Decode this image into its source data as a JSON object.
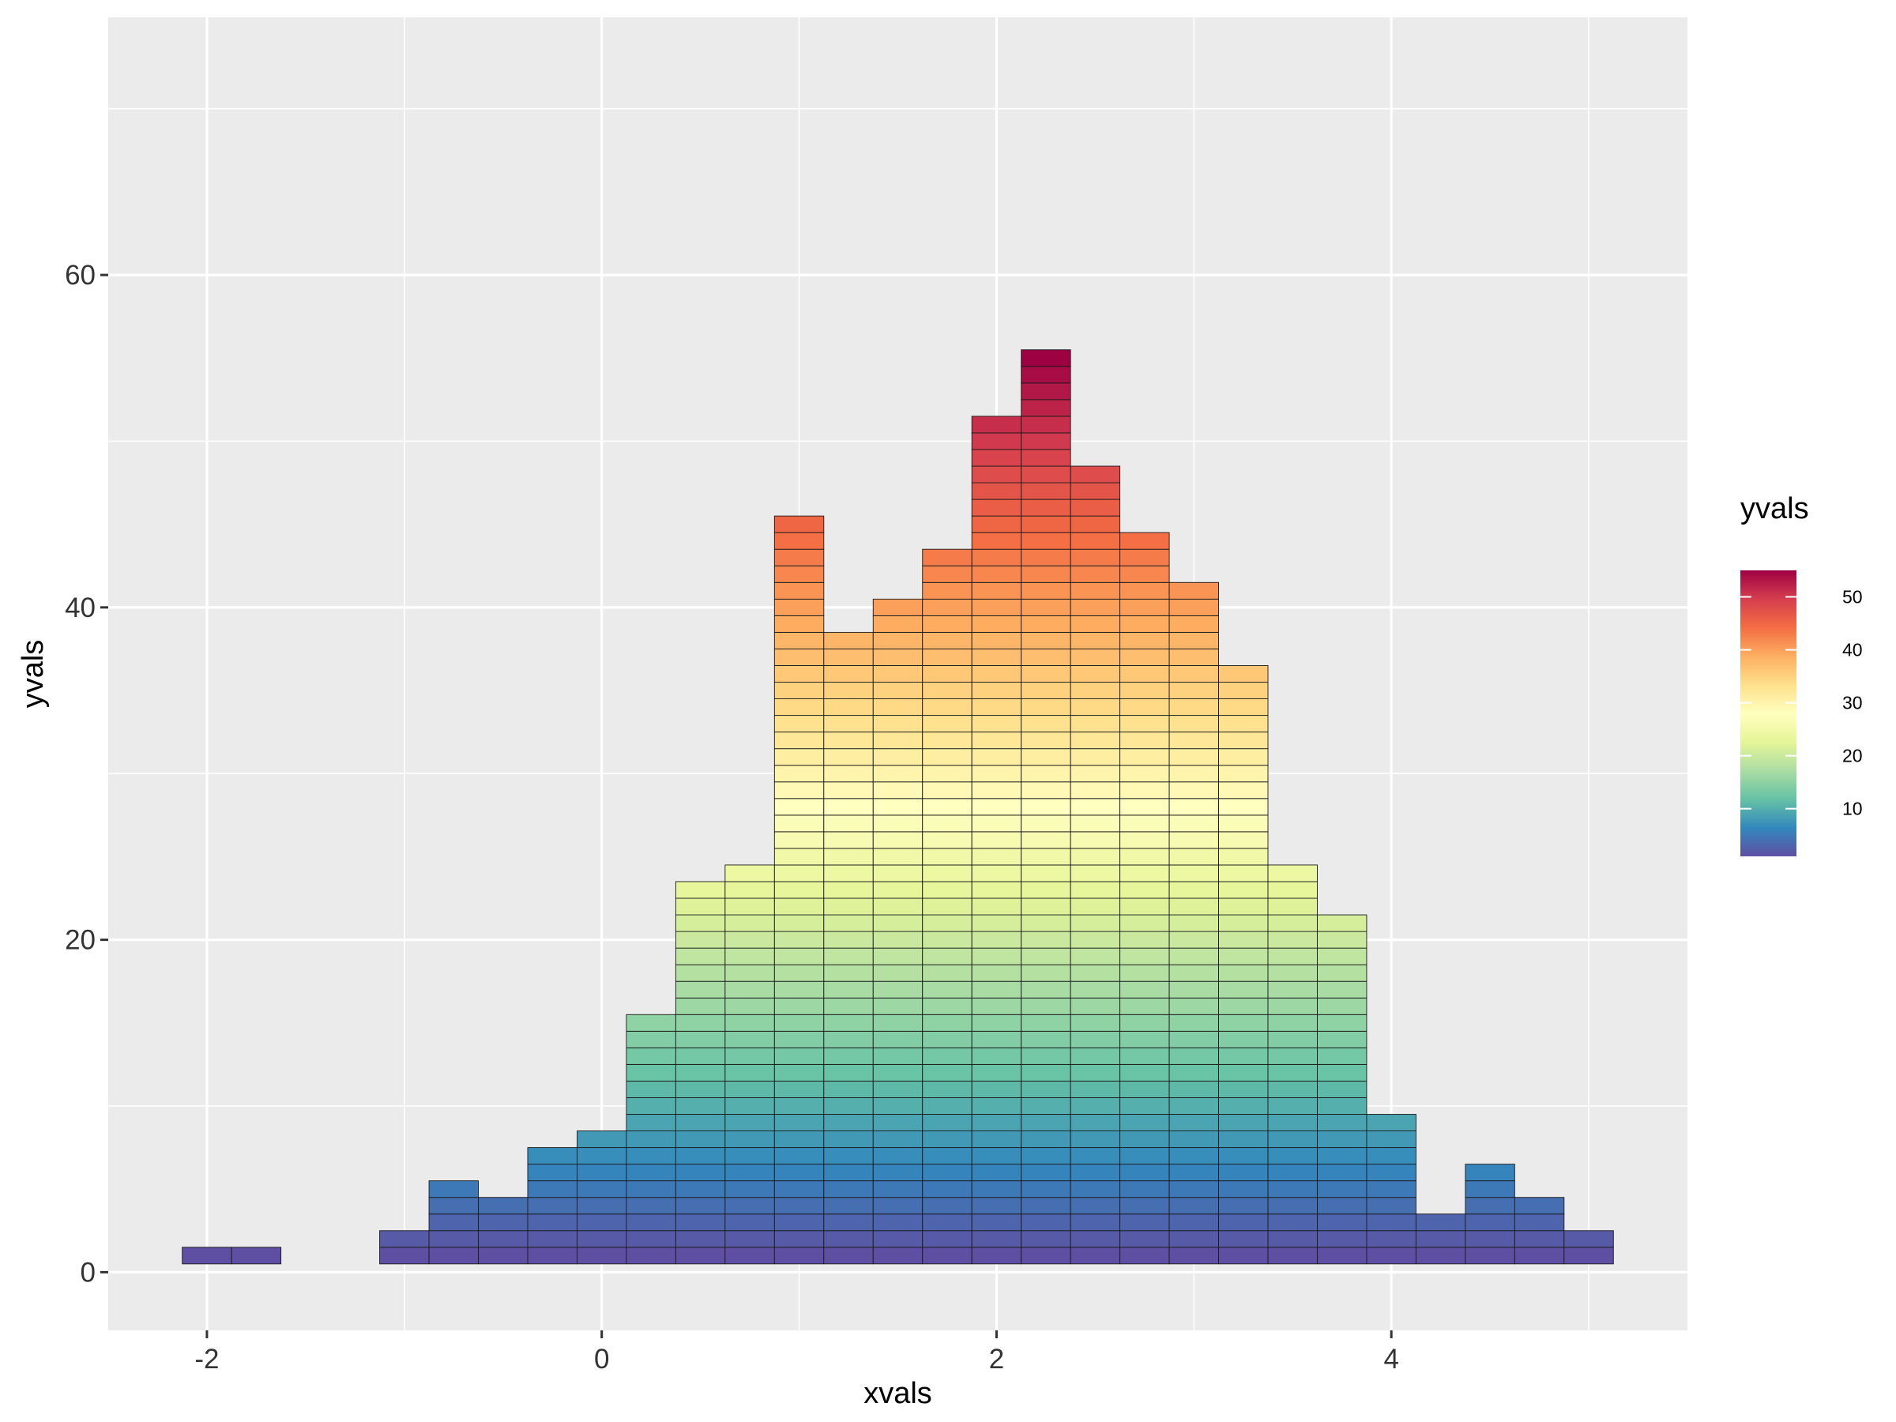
{
  "chart_data": {
    "type": "bar",
    "subtype": "stacked-unit-histogram",
    "xlabel": "xvals",
    "ylabel": "yvals",
    "legend": {
      "title": "yvals",
      "position": "right",
      "ticks": [
        "10",
        "20",
        "30",
        "40",
        "50"
      ]
    },
    "bin_width": 0.25,
    "x_centers": [
      -2.0,
      -1.75,
      -1.0,
      -0.75,
      -0.5,
      -0.25,
      0.0,
      0.25,
      0.5,
      0.75,
      1.0,
      1.25,
      1.5,
      1.75,
      2.0,
      2.25,
      2.5,
      2.75,
      3.0,
      3.25,
      3.5,
      3.75,
      4.0,
      4.25,
      4.5,
      4.75,
      5.0
    ],
    "counts": [
      1,
      1,
      2,
      5,
      4,
      7,
      8,
      15,
      23,
      24,
      45,
      38,
      40,
      43,
      51,
      55,
      48,
      44,
      41,
      36,
      24,
      21,
      9,
      3,
      6,
      4,
      2
    ],
    "xlim": [
      -2.5,
      5.5
    ],
    "ylim": [
      -3.5,
      75.5
    ],
    "x_ticks": [
      -2,
      0,
      2,
      4
    ],
    "x_tick_labels": [
      "-2",
      "0",
      "2",
      "4"
    ],
    "y_ticks": [
      0,
      20,
      40,
      60
    ],
    "y_tick_labels": [
      "0",
      "20",
      "40",
      "60"
    ],
    "color_range": [
      1,
      55
    ],
    "palette": [
      "#5E4FA2",
      "#3288BD",
      "#66C2A5",
      "#ABDDA4",
      "#E6F598",
      "#FFFFBF",
      "#FEE08B",
      "#FDAE61",
      "#F46D43",
      "#D53E4F",
      "#9E0142"
    ],
    "grid": true,
    "panel_background": "#EBEBEB",
    "grid_color": "#FFFFFF"
  }
}
